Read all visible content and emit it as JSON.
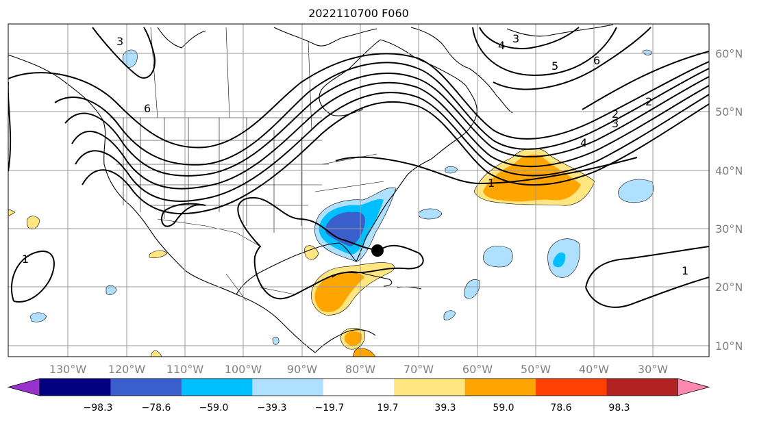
{
  "title": "2022110700 F060",
  "lon_labels": [
    "130°W",
    "120°W",
    "110°W",
    "100°W",
    "90°W",
    "80°W",
    "70°W",
    "60°W",
    "50°W",
    "40°W",
    "30°W"
  ],
  "lat_labels": [
    "60°N",
    "50°N",
    "40°N",
    "30°N",
    "20°N",
    "10°N"
  ],
  "colorbar": {
    "colors": [
      "#9932cc",
      "#000080",
      "#3a5fcd",
      "#00bfff",
      "#b0e0ff",
      "#ffffff",
      "#ffe680",
      "#ffa500",
      "#ff4000",
      "#b22222",
      "#ff88b0"
    ],
    "tick_labels": [
      "−98.3",
      "−78.6",
      "−59.0",
      "−39.3",
      "−19.7",
      "19.7",
      "39.3",
      "59.0",
      "78.6",
      "98.3"
    ]
  },
  "contour_labels": [
    "3",
    "6",
    "4",
    "3",
    "5",
    "6",
    "2",
    "2",
    "3",
    "4",
    "1",
    "1",
    "1"
  ],
  "storm_marker": {
    "lon": -76.3,
    "lat": 26.2
  }
}
